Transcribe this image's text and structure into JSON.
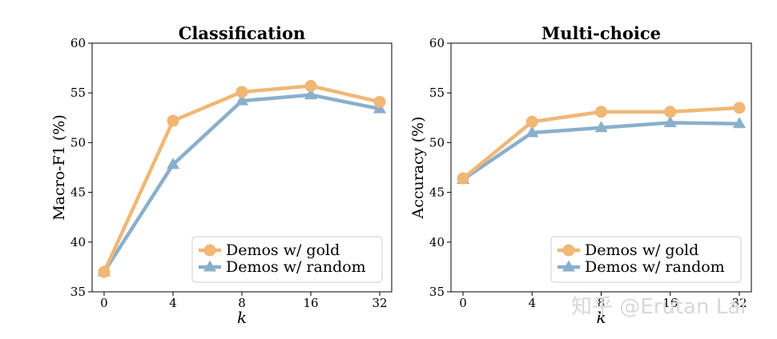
{
  "colors": {
    "gold": "#F0B775",
    "random": "#8AAFCB"
  },
  "watermark": "知乎 @Erutan Lai",
  "chart_data": [
    {
      "type": "line",
      "title": "Classification",
      "xlabel": "k",
      "ylabel": "Macro-F1 (%)",
      "categories": [
        "0",
        "4",
        "8",
        "16",
        "32"
      ],
      "ylim": [
        35,
        60
      ],
      "yticks": [
        35,
        40,
        45,
        50,
        55,
        60
      ],
      "grid": false,
      "legend_position": "lower-right",
      "series": [
        {
          "name": "Demos w/ gold",
          "marker": "circle",
          "values": [
            37.0,
            52.2,
            55.1,
            55.7,
            54.1
          ]
        },
        {
          "name": "Demos w/ random",
          "marker": "triangle",
          "values": [
            37.0,
            47.8,
            54.2,
            54.8,
            53.4
          ]
        }
      ]
    },
    {
      "type": "line",
      "title": "Multi-choice",
      "xlabel": "k",
      "ylabel": "Accuracy (%)",
      "categories": [
        "0",
        "4",
        "8",
        "16",
        "32"
      ],
      "ylim": [
        35,
        60
      ],
      "yticks": [
        35,
        40,
        45,
        50,
        55,
        60
      ],
      "grid": false,
      "legend_position": "lower-right",
      "series": [
        {
          "name": "Demos w/ gold",
          "marker": "circle",
          "values": [
            46.4,
            52.1,
            53.1,
            53.1,
            53.5
          ]
        },
        {
          "name": "Demos w/ random",
          "marker": "triangle",
          "values": [
            46.3,
            51.0,
            51.5,
            52.0,
            51.9
          ]
        }
      ]
    }
  ]
}
